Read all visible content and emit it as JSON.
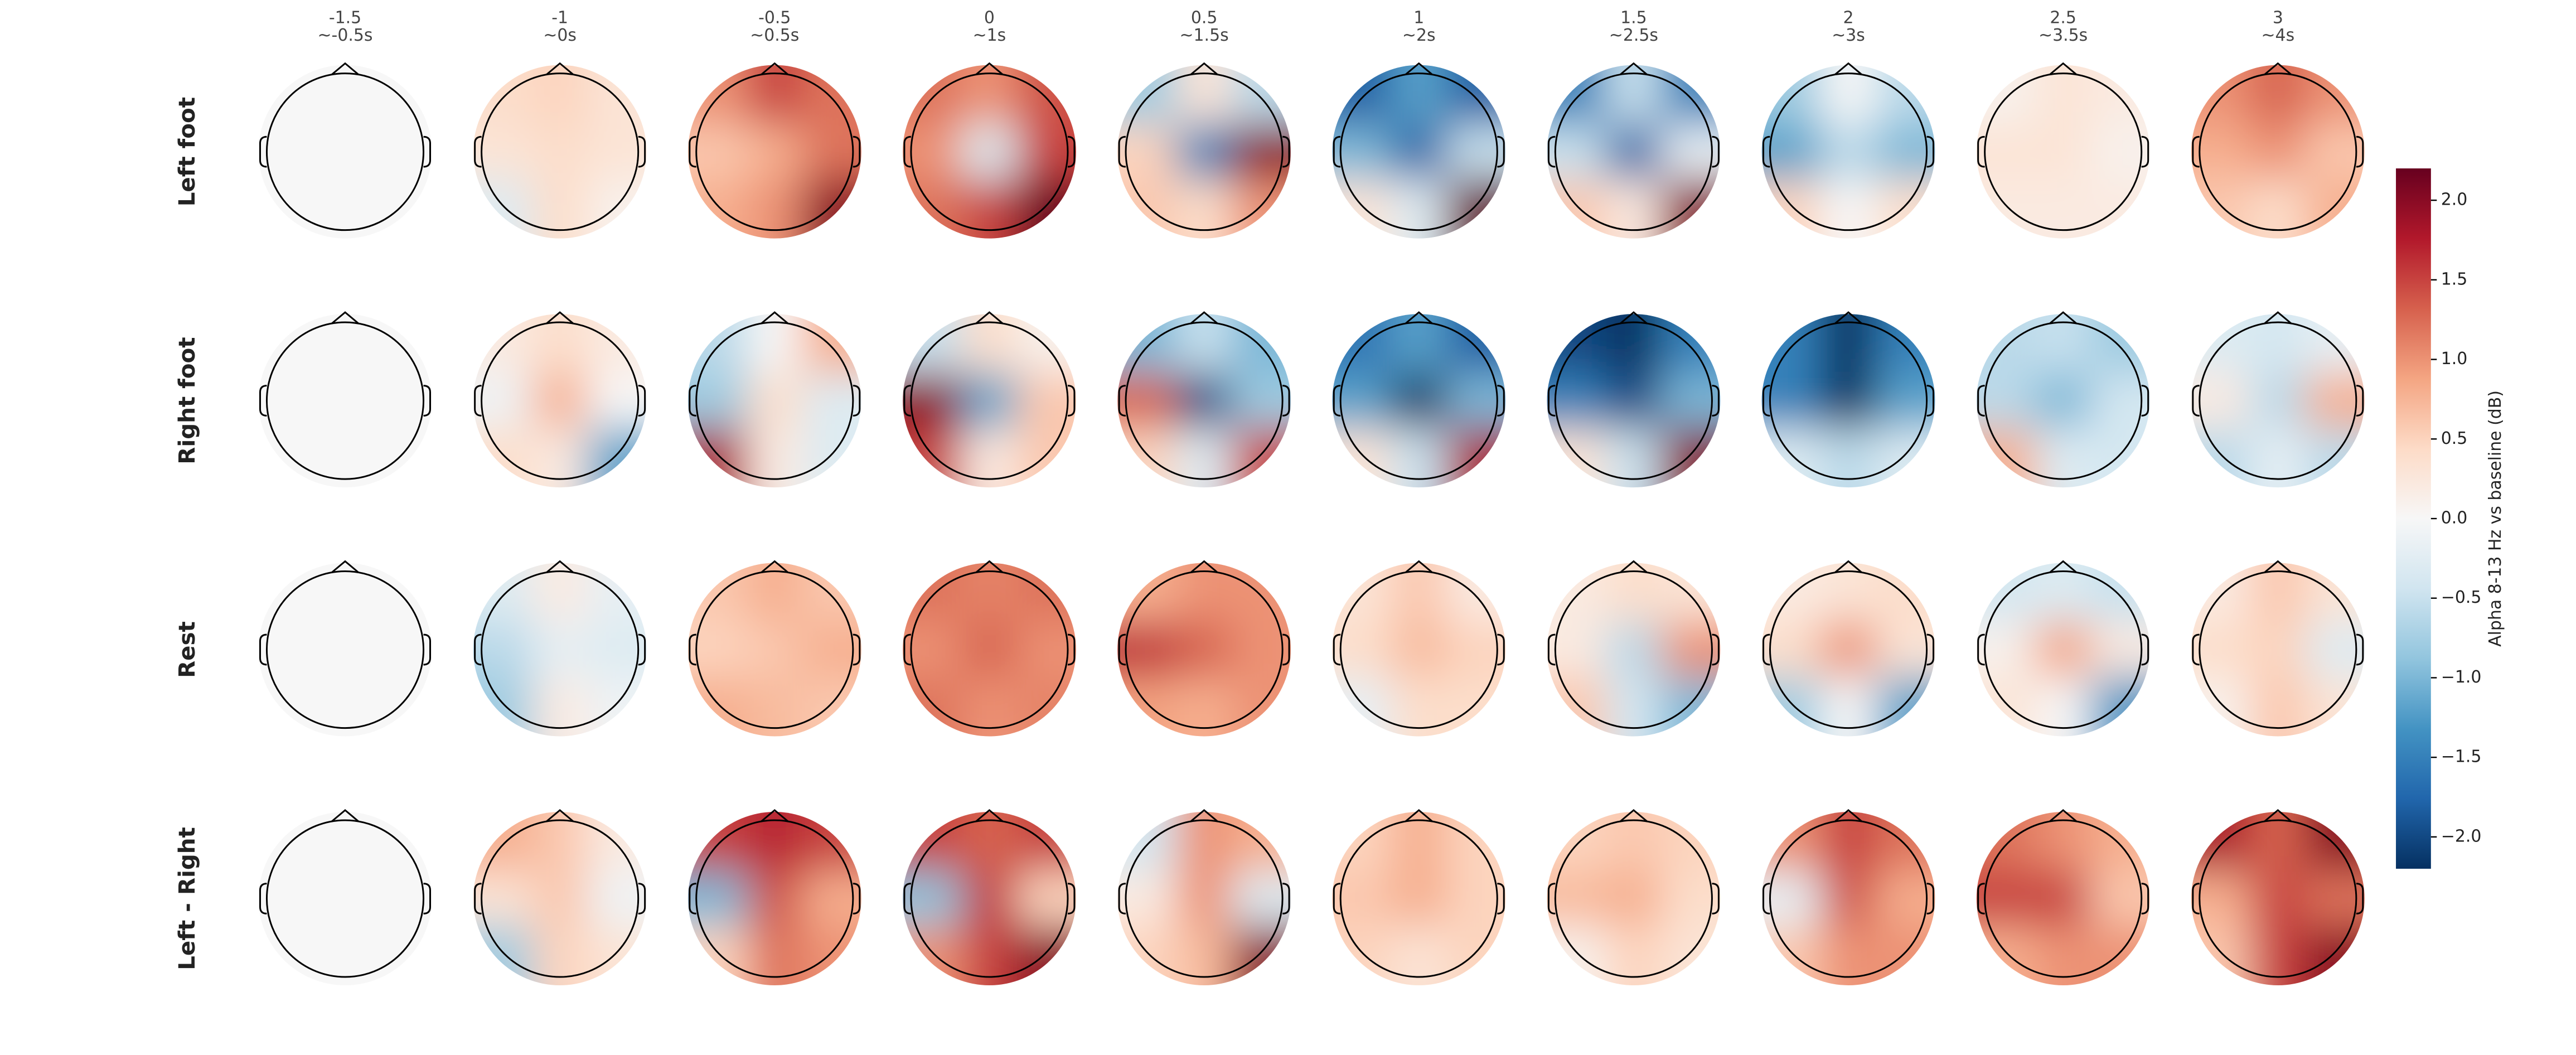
{
  "chart_data": {
    "type": "topomap",
    "columns": [
      {
        "time": "-1.5",
        "window": "~-0.5s"
      },
      {
        "time": "-1",
        "window": "~0s"
      },
      {
        "time": "-0.5",
        "window": "~0.5s"
      },
      {
        "time": "0",
        "window": "~1s"
      },
      {
        "time": "0.5",
        "window": "~1.5s"
      },
      {
        "time": "1",
        "window": "~2s"
      },
      {
        "time": "1.5",
        "window": "~2.5s"
      },
      {
        "time": "2",
        "window": "~3s"
      },
      {
        "time": "2.5",
        "window": "~3.5s"
      },
      {
        "time": "3",
        "window": "~4s"
      }
    ],
    "rows": [
      "Left foot",
      "Right foot",
      "Rest",
      "Left - Right"
    ],
    "maps": [
      [
        [
          0,
          0,
          0,
          0,
          0,
          0,
          0,
          0,
          0
        ],
        [
          0.4,
          0.5,
          0.3,
          0.3,
          0.4,
          0.3,
          -0.3,
          0.4,
          0.1
        ],
        [
          1.0,
          1.5,
          1.2,
          0.6,
          0.8,
          1.2,
          0.8,
          1.0,
          2.0
        ],
        [
          1.2,
          1.0,
          1.4,
          1.0,
          -0.3,
          1.5,
          1.2,
          1.5,
          2.2
        ],
        [
          -0.8,
          0.3,
          -0.6,
          0.5,
          -1.5,
          2.0,
          0.6,
          0.4,
          1.0
        ],
        [
          -1.8,
          -1.2,
          -1.8,
          -1.0,
          -1.8,
          -0.5,
          0.3,
          -0.3,
          2.2
        ],
        [
          -1.5,
          -0.5,
          -1.5,
          -0.5,
          -1.8,
          -0.2,
          0.6,
          0.2,
          2.0
        ],
        [
          -0.8,
          0,
          -0.6,
          -1.2,
          -0.6,
          -1.0,
          0.5,
          0,
          0.4
        ],
        [
          0.1,
          0.3,
          0.2,
          0.3,
          0.3,
          0.1,
          0.2,
          0.2,
          0.2
        ],
        [
          1.0,
          1.3,
          1.0,
          0.8,
          1.0,
          0.6,
          0.6,
          0.4,
          0.8
        ]
      ],
      [
        [
          0,
          0,
          0,
          0,
          0,
          0,
          0,
          0,
          0
        ],
        [
          0.2,
          0.4,
          0.2,
          -0.1,
          0.8,
          0.0,
          0.4,
          0.2,
          -1.2
        ],
        [
          -0.6,
          0,
          0.8,
          -0.8,
          0.4,
          -0.3,
          1.8,
          0.2,
          -0.3
        ],
        [
          -0.5,
          0.4,
          0.1,
          2.0,
          -1.2,
          0.6,
          1.5,
          0.2,
          0.6
        ],
        [
          -1.0,
          -0.5,
          -1.0,
          1.3,
          -2.0,
          -0.8,
          0.5,
          -0.3,
          1.5
        ],
        [
          -1.6,
          -1.2,
          -1.8,
          -1.2,
          -2.2,
          -1.0,
          0.3,
          -0.5,
          1.8
        ],
        [
          -2.0,
          -2.2,
          -1.5,
          -1.5,
          -2.0,
          -1.0,
          0.3,
          -0.5,
          2.0
        ],
        [
          -1.5,
          -2.2,
          -1.5,
          -1.5,
          -2.2,
          -1.2,
          -0.3,
          -0.6,
          -0.3
        ],
        [
          -0.6,
          -0.5,
          -0.8,
          -0.6,
          -1.0,
          -0.4,
          0.8,
          -0.3,
          -0.4
        ],
        [
          -0.3,
          -0.4,
          -0.2,
          0.2,
          -0.6,
          0.8,
          -0.6,
          -0.2,
          -0.6
        ]
      ],
      [
        [
          0,
          0,
          0,
          0,
          0,
          0,
          0,
          0,
          0
        ],
        [
          -0.3,
          0.2,
          -0.2,
          -0.6,
          -0.2,
          -0.3,
          -0.8,
          0.2,
          -0.1
        ],
        [
          0.6,
          0.8,
          0.6,
          0.5,
          0.6,
          0.8,
          0.8,
          0.7,
          0.6
        ],
        [
          1.2,
          1.1,
          1.2,
          1.0,
          1.3,
          1.0,
          1.2,
          1.0,
          1.1
        ],
        [
          0.8,
          1.0,
          1.0,
          1.6,
          1.3,
          1.0,
          0.9,
          0.8,
          1.0
        ],
        [
          0.3,
          0.6,
          0.2,
          0.4,
          0.7,
          0.5,
          -0.2,
          0.4,
          0.4
        ],
        [
          0.2,
          0.4,
          0.3,
          0.2,
          -0.6,
          1.0,
          0.6,
          -0.4,
          -1.0
        ],
        [
          0.2,
          0.3,
          0.4,
          0.4,
          1.0,
          0.3,
          -0.8,
          0,
          -1.2
        ],
        [
          -0.4,
          -0.3,
          -0.5,
          0.1,
          0.9,
          0.2,
          0.3,
          0.0,
          -1.3
        ],
        [
          0.2,
          0.6,
          0.3,
          0.4,
          0.5,
          -0.3,
          0.1,
          0.6,
          0.3
        ]
      ],
      [
        [
          0,
          0,
          0,
          0,
          0,
          0,
          0,
          0,
          0
        ],
        [
          0.8,
          0.6,
          0.2,
          0.3,
          0.6,
          -0.1,
          -0.8,
          0.5,
          0.3
        ],
        [
          1.5,
          1.7,
          1.5,
          -1.0,
          1.4,
          0.8,
          0.5,
          1.2,
          1.0
        ],
        [
          1.5,
          1.3,
          1.5,
          -0.9,
          1.6,
          0.5,
          1.0,
          1.5,
          2.0
        ],
        [
          -0.4,
          1.0,
          0.8,
          0.2,
          1.0,
          -0.3,
          0.5,
          0.7,
          2.0
        ],
        [
          0.5,
          0.8,
          0.5,
          0.6,
          0.8,
          0.5,
          0.5,
          0.3,
          0.5
        ],
        [
          0.5,
          0.6,
          0.5,
          0.7,
          0.8,
          0.4,
          0.1,
          0.5,
          0.3
        ],
        [
          1.0,
          1.5,
          1.2,
          -0.2,
          1.4,
          0.8,
          0.6,
          1.0,
          1.0
        ],
        [
          1.2,
          1.0,
          0.8,
          1.5,
          1.5,
          0.6,
          0.8,
          1.0,
          1.0
        ],
        [
          1.8,
          1.3,
          2.0,
          0.8,
          1.5,
          1.2,
          0.6,
          1.5,
          2.0
        ]
      ]
    ],
    "colormap": [
      "#053061",
      "#2166ac",
      "#4393c3",
      "#92c5de",
      "#d1e5f0",
      "#f7f7f7",
      "#fddbc7",
      "#f4a582",
      "#d6604d",
      "#b2182b",
      "#67001f"
    ],
    "colorbar": {
      "label": "Alpha 8-13 Hz vs baseline (dB)",
      "lim": [
        -2.2,
        2.2
      ],
      "ticks": [
        {
          "value": -2,
          "label": "−2.0"
        },
        {
          "value": -1.5,
          "label": "−1.5"
        },
        {
          "value": -1,
          "label": "−1.0"
        },
        {
          "value": -0.5,
          "label": "−0.5"
        },
        {
          "value": 0,
          "label": "0.0"
        },
        0.5,
        {
          "value": 1,
          "label": "1.0"
        },
        1.5,
        {
          "value": 2,
          "label": "2.0"
        }
      ]
    }
  }
}
